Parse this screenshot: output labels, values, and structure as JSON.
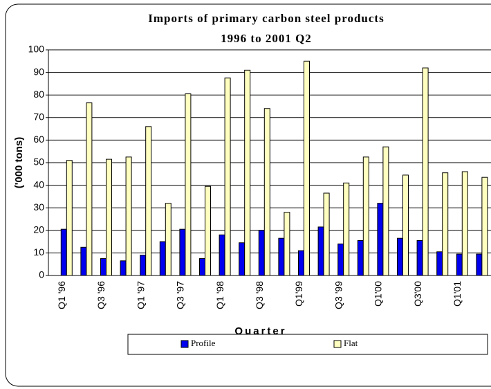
{
  "chart_data": {
    "type": "bar",
    "title": [
      "Imports of primary carbon steel products",
      "1996 to 2001 Q2"
    ],
    "x_label": "Quarter",
    "y_label": "('000 tons)",
    "categories": [
      "Q1 '96",
      null,
      "Q3 '96",
      null,
      "Q1 '97",
      null,
      "Q3 '97",
      null,
      "Q1 '98",
      null,
      "Q3 '98",
      null,
      "Q1'99",
      null,
      "Q3 '99",
      null,
      "Q1'00",
      null,
      "Q3'00",
      null,
      "Q1'01",
      null
    ],
    "series": [
      {
        "name": "Profile",
        "color": "#0000ee",
        "values": [
          20.5,
          12.5,
          7.5,
          6.5,
          9,
          15,
          20.5,
          7.5,
          18,
          14.5,
          20,
          16.5,
          11,
          21.5,
          14,
          15.5,
          32,
          16.5,
          15.5,
          10.5,
          9.5,
          9.5
        ]
      },
      {
        "name": "Flat",
        "color": "#ffffc0",
        "values": [
          51,
          76.5,
          51.5,
          52.5,
          66,
          32,
          80.5,
          39.5,
          87.5,
          91,
          74,
          28,
          95,
          36.5,
          41,
          52.5,
          57,
          44.5,
          92,
          45.5,
          46,
          43.5
        ]
      }
    ],
    "ylim": [
      0,
      100
    ],
    "yticks": [
      0,
      10,
      20,
      30,
      40,
      50,
      60,
      70,
      80,
      90,
      100
    ],
    "grid": true
  }
}
